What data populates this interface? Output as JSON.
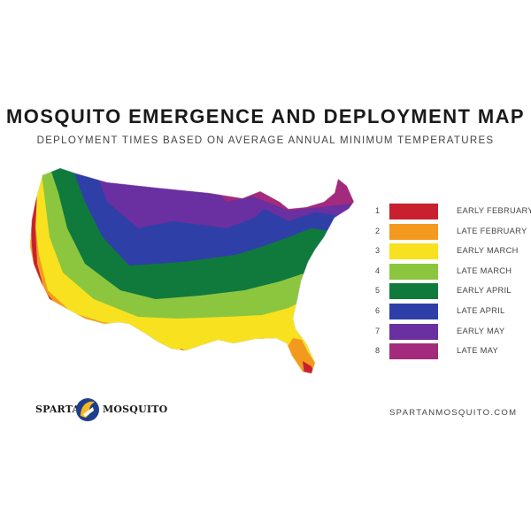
{
  "title": "MOSQUITO EMERGENCE AND DEPLOYMENT MAP",
  "subtitle": "DEPLOYMENT TIMES BASED ON AVERAGE ANNUAL MINIMUM TEMPERATURES",
  "legend": [
    {
      "num": "1",
      "label": "EARLY FEBRUARY",
      "color": "#c8202f"
    },
    {
      "num": "2",
      "label": "LATE FEBRUARY",
      "color": "#f39a1e"
    },
    {
      "num": "3",
      "label": "EARLY MARCH",
      "color": "#f8e11e"
    },
    {
      "num": "4",
      "label": "LATE MARCH",
      "color": "#8cc63f"
    },
    {
      "num": "5",
      "label": "EARLY APRIL",
      "color": "#0f7a3c"
    },
    {
      "num": "6",
      "label": "LATE APRIL",
      "color": "#2e3fa8"
    },
    {
      "num": "7",
      "label": "EARLY MAY",
      "color": "#6a2fa0"
    },
    {
      "num": "8",
      "label": "LATE MAY",
      "color": "#a32a7c"
    }
  ],
  "logo": {
    "left_text": "SPARTAN",
    "right_text": "MOSQUITO",
    "icon": "spartan-helmet-icon",
    "icon_color": "#1d3e8a",
    "accent_color": "#f5b820"
  },
  "website": "SPARTANMOSQUITO.COM"
}
